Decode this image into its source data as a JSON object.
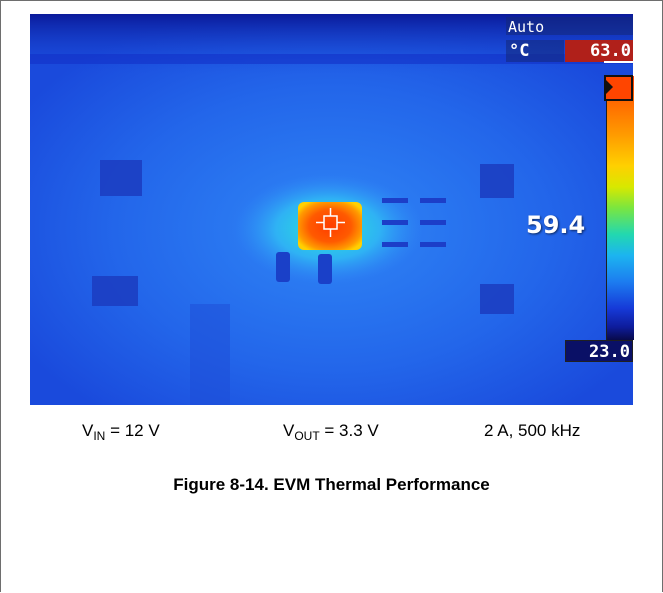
{
  "thermal_image": {
    "mode_label": "Auto",
    "unit_label": "°C",
    "scale_max": "63.0",
    "scale_min": "23.0",
    "spot_reading": "59.4",
    "colors": {
      "background": "#1a4fe0",
      "hot_spot": "#ff3d00",
      "max_box": "#b0201a",
      "min_box": "#0a1066"
    },
    "icons": [
      "crosshair-icon",
      "scale-pointer-icon"
    ]
  },
  "conditions": {
    "vin": {
      "symbol": "V",
      "subscript": "IN",
      "value": " = 12 V"
    },
    "vout": {
      "symbol": "V",
      "subscript": "OUT",
      "value": " = 3.3 V"
    },
    "load": "2 A, 500 kHz"
  },
  "caption": "Figure 8-14. EVM Thermal Performance"
}
